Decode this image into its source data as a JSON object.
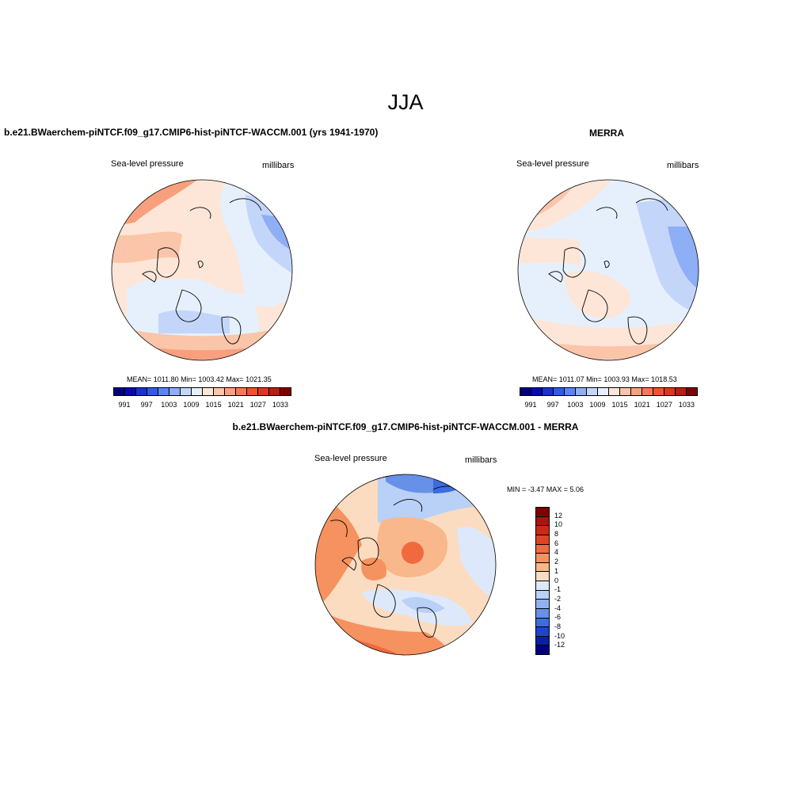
{
  "figure": {
    "season": "JJA"
  },
  "panels": [
    {
      "title": "b.e21.BWaerchem-piNTCF.f09_g17.CMIP6-hist-piNTCF-WACCM.001 (yrs 1941-1970)",
      "variable": "Sea-level pressure",
      "units": "millibars",
      "stats": "MEAN= 1011.80  Min= 1003.42  Max= 1021.35"
    },
    {
      "title": "MERRA",
      "variable": "Sea-level pressure",
      "units": "millibars",
      "stats": "MEAN= 1011.07  Min= 1003.93  Max= 1018.53"
    },
    {
      "title": "b.e21.BWaerchem-piNTCF.f09_g17.CMIP6-hist-piNTCF-WACCM.001 - MERRA",
      "variable": "Sea-level pressure",
      "units": "millibars",
      "stats": "MIN =  -3.47 MAX =   5.06"
    }
  ],
  "colorbar_abs": {
    "labels": [
      "991",
      "997",
      "1003",
      "1009",
      "1015",
      "1021",
      "1027",
      "1033"
    ],
    "colors": [
      "#00007f",
      "#0a0aa8",
      "#1a33c9",
      "#2f5ddf",
      "#5a86f0",
      "#8eaef5",
      "#c3d6fa",
      "#e6f0fd",
      "#fde6d8",
      "#fbc5a9",
      "#f8a07d",
      "#f47a55",
      "#ed5430",
      "#d8381c",
      "#b22210",
      "#7f0000"
    ]
  },
  "colorbar_diff": {
    "labels": [
      "12",
      "10",
      "8",
      "6",
      "4",
      "2",
      "1",
      "0",
      "-1",
      "-2",
      "-4",
      "-6",
      "-8",
      "-10",
      "-12"
    ],
    "colors": [
      "#7f0000",
      "#a8160b",
      "#c92a16",
      "#e04426",
      "#f06a3d",
      "#f6925f",
      "#f9b78c",
      "#fcdcc0",
      "#dde9fb",
      "#b9d0f7",
      "#8fb1f1",
      "#6790e8",
      "#3e6be0",
      "#1e45cc",
      "#0a1fa8",
      "#00007f"
    ]
  }
}
